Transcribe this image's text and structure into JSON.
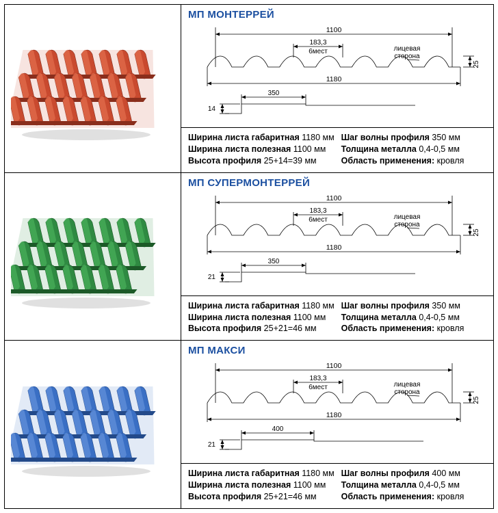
{
  "products": [
    {
      "title": "МП МОНТЕРРЕЙ",
      "tile_color": "#c94a2f",
      "tile_shadow": "#8a2e1c",
      "tile_light": "#e87454",
      "diagram": {
        "working_width": "1100",
        "overall_width": "1180",
        "wave_spacing": "183,3",
        "wave_note": "6мест",
        "face_label": "лицевая\nсторона",
        "step_w": "350",
        "step_h": "14",
        "wave_h": "25"
      },
      "specs_left": [
        {
          "k": "Ширина листа габаритная",
          "v": "1180 мм"
        },
        {
          "k": "Ширина листа полезная",
          "v": "1100 мм"
        },
        {
          "k": "Высота профиля",
          "v": "25+14=39 мм"
        }
      ],
      "specs_right": [
        {
          "k": "Шаг волны профиля",
          "v": "350 мм"
        },
        {
          "k": "Толщина металла",
          "v": "0,4-0,5 мм"
        },
        {
          "k": "Область применения:",
          "v": "кровля"
        }
      ]
    },
    {
      "title": "МП СУПЕРМОНТЕРРЕЙ",
      "tile_color": "#2f8a42",
      "tile_shadow": "#1c5a28",
      "tile_light": "#4fb85f",
      "diagram": {
        "working_width": "1100",
        "overall_width": "1180",
        "wave_spacing": "183,3",
        "wave_note": "6мест",
        "face_label": "лицевая\nсторона",
        "step_w": "350",
        "step_h": "21",
        "wave_h": "25"
      },
      "specs_left": [
        {
          "k": "Ширина листа габаритная",
          "v": "1180 мм"
        },
        {
          "k": "Ширина листа полезная",
          "v": "1100 мм"
        },
        {
          "k": "Высота профиля",
          "v": "25+21=46 мм"
        }
      ],
      "specs_right": [
        {
          "k": "Шаг волны профиля",
          "v": "350 мм"
        },
        {
          "k": "Толщина металла",
          "v": "0,4-0,5 мм"
        },
        {
          "k": "Область применения:",
          "v": "кровля"
        }
      ]
    },
    {
      "title": "МП МАКСИ",
      "tile_color": "#3a6fc4",
      "tile_shadow": "#234a8a",
      "tile_light": "#6a98e0",
      "diagram": {
        "working_width": "1100",
        "overall_width": "1180",
        "wave_spacing": "183,3",
        "wave_note": "6мест",
        "face_label": "лицевая\nсторона",
        "step_w": "400",
        "step_h": "21",
        "wave_h": "25"
      },
      "specs_left": [
        {
          "k": "Ширина листа габаритная",
          "v": "1180 мм"
        },
        {
          "k": "Ширина листа полезная",
          "v": "1100 мм"
        },
        {
          "k": "Высота профиля",
          "v": "25+21=46 мм"
        }
      ],
      "specs_right": [
        {
          "k": "Шаг волны профиля",
          "v": "400 мм"
        },
        {
          "k": "Толщина металла",
          "v": "0,4-0,5 мм"
        },
        {
          "k": "Область применения:",
          "v": "кровля"
        }
      ]
    }
  ],
  "style": {
    "title_color": "#1b4fa0",
    "border_color": "#000000",
    "text_color": "#000000"
  }
}
